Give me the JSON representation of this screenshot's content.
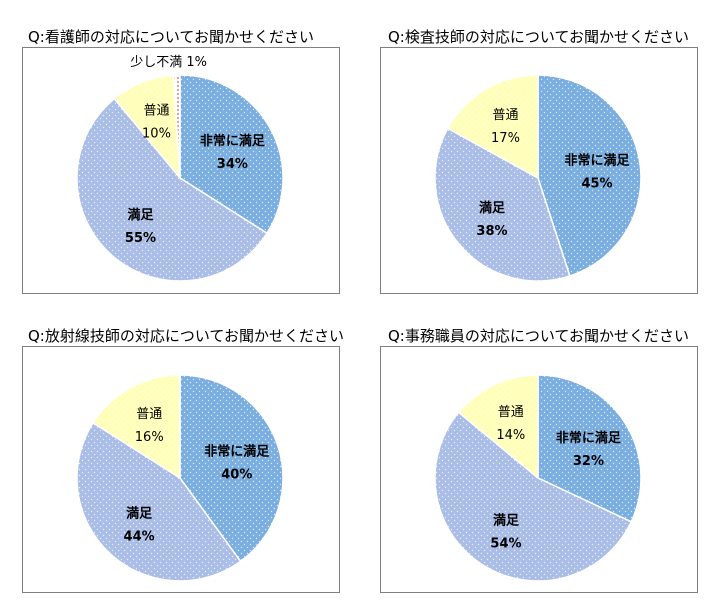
{
  "chart_data": [
    {
      "type": "pie",
      "title": "Q:看護師の対応についてお聞かせください",
      "slices": [
        {
          "label": "非常に満足",
          "value": 34,
          "value_label": "34%",
          "color": "#7aaee0",
          "bold": true
        },
        {
          "label": "満足",
          "value": 55,
          "value_label": "55%",
          "color": "#a9bde6",
          "bold": true
        },
        {
          "label": "普通",
          "value": 10,
          "value_label": "10%",
          "color": "#ffffb9",
          "bold": false
        },
        {
          "label": "少し不満",
          "value": 1,
          "value_label": "1%",
          "color": "#f28d8d",
          "bold": false
        }
      ]
    },
    {
      "type": "pie",
      "title": "Q:検査技師の対応についてお聞かせください",
      "slices": [
        {
          "label": "非常に満足",
          "value": 45,
          "value_label": "45%",
          "color": "#7aaee0",
          "bold": true
        },
        {
          "label": "満足",
          "value": 38,
          "value_label": "38%",
          "color": "#a9bde6",
          "bold": true
        },
        {
          "label": "普通",
          "value": 17,
          "value_label": "17%",
          "color": "#ffffb9",
          "bold": false
        }
      ]
    },
    {
      "type": "pie",
      "title": "Q:放射線技師の対応についてお聞かせください",
      "slices": [
        {
          "label": "非常に満足",
          "value": 40,
          "value_label": "40%",
          "color": "#7aaee0",
          "bold": true
        },
        {
          "label": "満足",
          "value": 44,
          "value_label": "44%",
          "color": "#a9bde6",
          "bold": true
        },
        {
          "label": "普通",
          "value": 16,
          "value_label": "16%",
          "color": "#ffffb9",
          "bold": false
        }
      ]
    },
    {
      "type": "pie",
      "title": "Q:事務職員の対応についてお聞かせください",
      "slices": [
        {
          "label": "非常に満足",
          "value": 32,
          "value_label": "32%",
          "color": "#7aaee0",
          "bold": true
        },
        {
          "label": "満足",
          "value": 54,
          "value_label": "54%",
          "color": "#a9bde6",
          "bold": true
        },
        {
          "label": "普通",
          "value": 14,
          "value_label": "14%",
          "color": "#ffffb9",
          "bold": false
        }
      ]
    }
  ]
}
